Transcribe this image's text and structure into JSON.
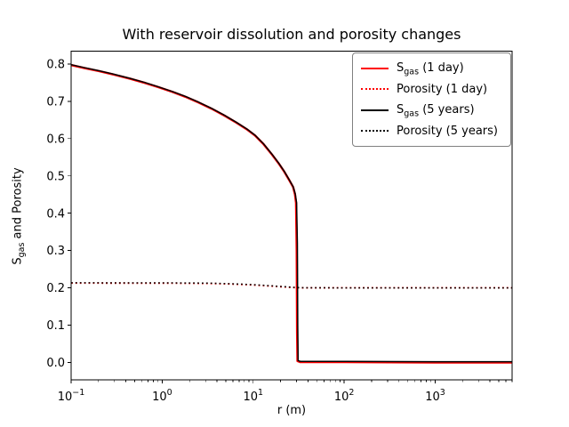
{
  "title": "With reservoir dissolution and porosity changes",
  "xlabel": "r (m)",
  "ylabel": {
    "pre": "S",
    "sub": "gas",
    "post": " and Porosity"
  },
  "colors": {
    "red": "#ff0000",
    "black": "#000000",
    "axis": "#000000",
    "text": "#000000",
    "legend_border": "#808080",
    "background": "#ffffff"
  },
  "chart_data": {
    "type": "line",
    "xscale": "log",
    "xlim": [
      0.1,
      7000
    ],
    "ylim": [
      -0.047,
      0.834
    ],
    "xticks": [
      0.1,
      1,
      10,
      100,
      1000
    ],
    "xtick_exponents": [
      "−1",
      "0",
      "1",
      "2",
      "3"
    ],
    "xtick_base": "10",
    "yticks": [
      0.0,
      0.1,
      0.2,
      0.3,
      0.4,
      0.5,
      0.6,
      0.7,
      0.8
    ],
    "grid": false,
    "legend_position": "upper right",
    "series": [
      {
        "label_pre": "S",
        "label_sub": "gas",
        "label_post": " (1 day)",
        "color": "#ff0000",
        "style": "solid",
        "points": [
          [
            0.1,
            0.797
          ],
          [
            0.14,
            0.789
          ],
          [
            0.2,
            0.781
          ],
          [
            0.3,
            0.771
          ],
          [
            0.45,
            0.76
          ],
          [
            0.65,
            0.749
          ],
          [
            0.9,
            0.738
          ],
          [
            1.3,
            0.725
          ],
          [
            1.8,
            0.712
          ],
          [
            2.5,
            0.697
          ],
          [
            3.5,
            0.68
          ],
          [
            4.8,
            0.662
          ],
          [
            6.5,
            0.643
          ],
          [
            8.5,
            0.625
          ],
          [
            10.5,
            0.608
          ],
          [
            13,
            0.585
          ],
          [
            16,
            0.558
          ],
          [
            19,
            0.534
          ],
          [
            22,
            0.511
          ],
          [
            25,
            0.488
          ],
          [
            27.5,
            0.47
          ],
          [
            28.8,
            0.451
          ],
          [
            29.6,
            0.428
          ],
          [
            30.1,
            0.3
          ],
          [
            30.4,
            0.08
          ],
          [
            30.7,
            0.004
          ],
          [
            33,
            0.001
          ],
          [
            100,
            0.001
          ],
          [
            1000,
            0.0
          ],
          [
            7000,
            0.0
          ]
        ]
      },
      {
        "label_pre": "Porosity (1 day)",
        "label_sub": "",
        "label_post": "",
        "color": "#ff0000",
        "style": "dotted",
        "points": [
          [
            0.1,
            0.2128
          ],
          [
            1,
            0.2126
          ],
          [
            2,
            0.2123
          ],
          [
            3,
            0.212
          ],
          [
            4,
            0.2114
          ],
          [
            5,
            0.2107
          ],
          [
            6.5,
            0.2098
          ],
          [
            8,
            0.2089
          ],
          [
            10,
            0.2078
          ],
          [
            12.5,
            0.2064
          ],
          [
            15,
            0.2051
          ],
          [
            18,
            0.2038
          ],
          [
            22,
            0.2024
          ],
          [
            26,
            0.2013
          ],
          [
            30,
            0.2005
          ],
          [
            36,
            0.2001
          ],
          [
            50,
            0.2
          ],
          [
            100,
            0.2
          ],
          [
            1000,
            0.2
          ],
          [
            7000,
            0.2
          ]
        ]
      },
      {
        "label_pre": "S",
        "label_sub": "gas",
        "label_post": " (5 years)",
        "color": "#000000",
        "style": "solid",
        "points": [
          [
            0.1,
            0.798
          ],
          [
            0.14,
            0.79
          ],
          [
            0.2,
            0.782
          ],
          [
            0.3,
            0.772
          ],
          [
            0.45,
            0.761
          ],
          [
            0.65,
            0.75
          ],
          [
            0.9,
            0.739
          ],
          [
            1.3,
            0.726
          ],
          [
            1.8,
            0.713
          ],
          [
            2.5,
            0.698
          ],
          [
            3.5,
            0.681
          ],
          [
            4.8,
            0.663
          ],
          [
            6.5,
            0.644
          ],
          [
            8.5,
            0.626
          ],
          [
            10.5,
            0.609
          ],
          [
            13,
            0.586
          ],
          [
            16,
            0.559
          ],
          [
            19,
            0.535
          ],
          [
            22,
            0.512
          ],
          [
            25,
            0.489
          ],
          [
            27.5,
            0.471
          ],
          [
            29,
            0.452
          ],
          [
            30,
            0.428
          ],
          [
            30.6,
            0.32
          ],
          [
            30.9,
            0.1
          ],
          [
            31.2,
            0.005
          ],
          [
            33,
            0.003
          ],
          [
            100,
            0.003
          ],
          [
            1000,
            0.002
          ],
          [
            7000,
            0.002
          ]
        ]
      },
      {
        "label_pre": "Porosity (5 years)",
        "label_sub": "",
        "label_post": "",
        "color": "#000000",
        "style": "dotted",
        "points": [
          [
            0.1,
            0.2135
          ],
          [
            1,
            0.2133
          ],
          [
            2,
            0.213
          ],
          [
            3,
            0.2127
          ],
          [
            4,
            0.2121
          ],
          [
            5,
            0.2114
          ],
          [
            6.5,
            0.2105
          ],
          [
            8,
            0.2096
          ],
          [
            10,
            0.2085
          ],
          [
            12.5,
            0.2071
          ],
          [
            15,
            0.2058
          ],
          [
            18,
            0.2045
          ],
          [
            22,
            0.2031
          ],
          [
            26,
            0.2019
          ],
          [
            30,
            0.2009
          ],
          [
            36,
            0.2003
          ],
          [
            50,
            0.2001
          ],
          [
            100,
            0.2
          ],
          [
            1000,
            0.2
          ],
          [
            7000,
            0.2
          ]
        ]
      }
    ]
  }
}
